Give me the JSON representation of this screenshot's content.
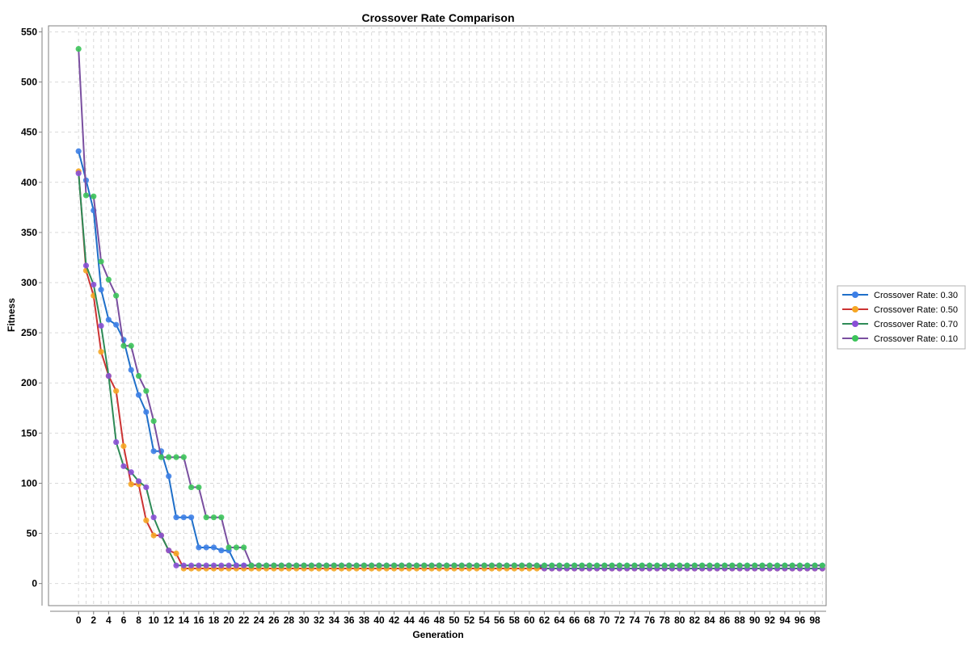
{
  "chart_data": {
    "type": "line",
    "title": "Crossover Rate Comparison",
    "xlabel": "Generation",
    "ylabel": "Fitness",
    "xlim": [
      -4,
      99.5
    ],
    "ylim": [
      -22,
      556
    ],
    "x_ticks": [
      0,
      2,
      4,
      6,
      8,
      10,
      12,
      14,
      16,
      18,
      20,
      22,
      24,
      26,
      28,
      30,
      32,
      34,
      36,
      38,
      40,
      42,
      44,
      46,
      48,
      50,
      52,
      54,
      56,
      58,
      60,
      62,
      64,
      66,
      68,
      70,
      72,
      74,
      76,
      78,
      80,
      82,
      84,
      86,
      88,
      90,
      92,
      94,
      96,
      98
    ],
    "y_ticks": [
      0,
      50,
      100,
      150,
      200,
      250,
      300,
      350,
      400,
      450,
      500,
      550
    ],
    "grid": true,
    "legend_position": "right",
    "series": [
      {
        "name": "Crossover Rate: 0.30",
        "line_color": "#1f6fc9",
        "marker_color": "#3d7fe6",
        "start": [
          431,
          402,
          372,
          293,
          263,
          258,
          243,
          213,
          188,
          171,
          132,
          132,
          107,
          66,
          66,
          66,
          36,
          36,
          36,
          33,
          33,
          18
        ],
        "tail": 18
      },
      {
        "name": "Crossover Rate: 0.50",
        "line_color": "#cc3333",
        "marker_color": "#f5a623",
        "start": [
          411,
          312,
          287,
          231,
          207,
          192,
          137,
          99,
          99,
          63,
          48,
          48,
          33,
          30,
          15
        ],
        "tail": 15
      },
      {
        "name": "Crossover Rate: 0.70",
        "line_color": "#2e8b57",
        "marker_color": "#8a4fd6",
        "start": [
          409,
          317,
          298,
          257,
          207,
          141,
          117,
          111,
          102,
          96,
          66,
          48,
          33,
          18,
          18,
          18,
          18,
          18,
          18,
          18,
          18,
          18
        ],
        "mid": 18,
        "mid_until": 61,
        "tail": 15
      },
      {
        "name": "Crossover Rate: 0.10",
        "line_color": "#7a4fa0",
        "marker_color": "#3cc45a",
        "start": [
          533,
          387,
          386,
          321,
          303,
          287,
          237,
          237,
          207,
          192,
          162,
          126,
          126,
          126,
          126,
          96,
          96,
          66,
          66,
          66,
          36,
          36,
          36
        ],
        "tail": 18
      }
    ]
  }
}
